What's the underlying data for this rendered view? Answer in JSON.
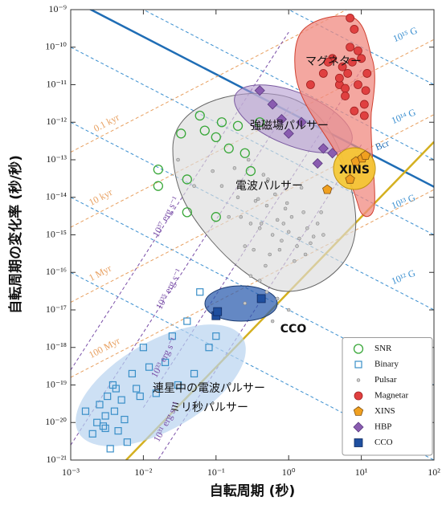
{
  "chart_data": {
    "type": "scatter",
    "xlabel": "自転周期 (秒)",
    "ylabel": "自転周期の変化率 (秒/秒)",
    "xscale": "log",
    "yscale": "log",
    "xlim": [
      0.001,
      100
    ],
    "ylim": [
      1e-21,
      1e-09
    ],
    "xticks": [
      {
        "value": 0.001,
        "label": "10⁻³"
      },
      {
        "value": 0.01,
        "label": "10⁻²"
      },
      {
        "value": 0.1,
        "label": "10⁻¹"
      },
      {
        "value": 1,
        "label": "10⁰"
      },
      {
        "value": 10,
        "label": "10¹"
      },
      {
        "value": 100,
        "label": "10²"
      }
    ],
    "yticks": [
      {
        "value": 1e-21,
        "label": "10⁻²¹"
      },
      {
        "value": 1e-20,
        "label": "10⁻²⁰"
      },
      {
        "value": 1e-19,
        "label": "10⁻¹⁹"
      },
      {
        "value": 1e-18,
        "label": "10⁻¹⁸"
      },
      {
        "value": 1e-17,
        "label": "10⁻¹⁷"
      },
      {
        "value": 1e-16,
        "label": "10⁻¹⁶"
      },
      {
        "value": 1e-15,
        "label": "10⁻¹⁵"
      },
      {
        "value": 1e-14,
        "label": "10⁻¹⁴"
      },
      {
        "value": 1e-13,
        "label": "10⁻¹³"
      },
      {
        "value": 1e-12,
        "label": "10⁻¹²"
      },
      {
        "value": 1e-11,
        "label": "10⁻¹¹"
      },
      {
        "value": 1e-10,
        "label": "10⁻¹⁰"
      },
      {
        "value": 1e-09,
        "label": "10⁻⁹"
      }
    ],
    "legend": "lower right",
    "region_labels": [
      "マグネター",
      "強磁場パルサー",
      "XINS",
      "電波パルサー",
      "CCO",
      "連星中の電波パルサー",
      "ミリ秒パルサー"
    ],
    "reference_lines": [
      {
        "label": "10¹⁵ G",
        "color": "#3a8fd0",
        "dash": true,
        "x": [
          0.001,
          100
        ],
        "values": [
          1e-06,
          1e-11
        ]
      },
      {
        "label": "10¹⁴ G",
        "color": "#3a8fd0",
        "dash": true,
        "x": [
          0.001,
          100
        ],
        "values": [
          1e-08,
          1e-13
        ]
      },
      {
        "label": "10¹³ G",
        "color": "#3a8fd0",
        "dash": true,
        "x": [
          0.001,
          100
        ],
        "values": [
          1e-10,
          1e-15
        ]
      },
      {
        "label": "10¹² G",
        "color": "#3a8fd0",
        "dash": true,
        "x": [
          0.001,
          100
        ],
        "values": [
          1e-12,
          1e-17
        ]
      },
      {
        "color": "#3a8fd0",
        "dash": true,
        "x": [
          0.001,
          100
        ],
        "values": [
          1e-14,
          1e-19
        ]
      },
      {
        "color": "#3a8fd0",
        "dash": true,
        "x": [
          0.001,
          100
        ],
        "values": [
          1e-16,
          1e-21
        ]
      },
      {
        "label": "Bcr",
        "color": "#1f6db5",
        "dash": false,
        "x": [
          0.001,
          100
        ],
        "values": [
          1.9e-09,
          1.9e-14
        ]
      },
      {
        "label": "0.1 kyr",
        "color": "#e8a060",
        "dash": true,
        "x": [
          0.001,
          100
        ],
        "values": [
          1.6e-13,
          1.6e-08
        ]
      },
      {
        "label": "10 kyr",
        "color": "#e8a060",
        "dash": true,
        "x": [
          0.001,
          100
        ],
        "values": [
          1.6e-15,
          1.6e-10
        ]
      },
      {
        "label": "1 Myr",
        "color": "#e8a060",
        "dash": true,
        "x": [
          0.001,
          100
        ],
        "values": [
          1.6e-17,
          1.6e-12
        ]
      },
      {
        "label": "100 Myr",
        "color": "#e8a060",
        "dash": true,
        "x": [
          0.001,
          100
        ],
        "values": [
          1.6e-19,
          1.6e-14
        ]
      },
      {
        "label": "10³⁷ erg s⁻¹",
        "color": "#7a4fa8",
        "dash": true,
        "x": [
          0.001,
          1
        ],
        "values": [
          2.5e-19,
          2.5e-10
        ]
      },
      {
        "label": "10³⁵ erg s⁻¹",
        "color": "#7a4fa8",
        "dash": true,
        "x": [
          0.001,
          1
        ],
        "values": [
          2.5e-21,
          2.5e-12
        ]
      },
      {
        "label": "10³³ erg s⁻¹",
        "color": "#7a4fa8",
        "dash": true,
        "x": [
          0.01,
          10
        ],
        "values": [
          2.5e-20,
          2.5e-11
        ]
      },
      {
        "label": "10³¹ erg s⁻¹",
        "color": "#7a4fa8",
        "dash": true,
        "x": [
          0.01,
          10
        ],
        "values": [
          2.5e-22,
          2.5e-13
        ]
      },
      {
        "color": "#d4b020",
        "dash": false,
        "x": [
          0.0058,
          100
        ],
        "values": [
          1e-21,
          3e-13
        ]
      }
    ],
    "series": [
      {
        "name": "SNR",
        "marker": "circle-open",
        "color": "#3aa83a",
        "x": [
          0.033,
          0.04,
          0.06,
          0.07,
          0.1,
          0.12,
          0.15,
          0.2,
          0.25,
          0.3,
          0.016,
          0.04,
          0.1,
          0.4,
          0.016
        ],
        "values": [
          5e-13,
          3e-14,
          1.5e-12,
          6e-13,
          4e-13,
          1e-12,
          2e-13,
          8e-13,
          1.5e-13,
          5e-14,
          5.5e-14,
          4e-15,
          3e-15,
          1e-12,
          2e-14
        ]
      },
      {
        "name": "Binary",
        "marker": "square-open",
        "color": "#3a8fc8",
        "x": [
          0.0016,
          0.002,
          0.0023,
          0.0025,
          0.0028,
          0.003,
          0.0032,
          0.0035,
          0.0038,
          0.004,
          0.0045,
          0.005,
          0.0055,
          0.006,
          0.007,
          0.008,
          0.009,
          0.01,
          0.012,
          0.015,
          0.02,
          0.025,
          0.03,
          0.04,
          0.05,
          0.06,
          0.08,
          0.1,
          0.003,
          0.0042
        ],
        "values": [
          2e-20,
          5e-21,
          1e-20,
          3e-20,
          8e-21,
          1.5e-20,
          5e-20,
          2e-21,
          1e-19,
          2e-20,
          6e-21,
          4e-20,
          1.2e-20,
          3e-21,
          2e-19,
          8e-20,
          5e-20,
          1e-18,
          3e-19,
          6e-20,
          4e-19,
          2e-18,
          1e-19,
          5e-18,
          2e-19,
          3e-17,
          1e-18,
          2e-18,
          7e-21,
          8e-20
        ]
      },
      {
        "name": "Pulsar",
        "marker": "dot",
        "color": "#999999",
        "x": [
          0.15,
          0.2,
          0.25,
          0.3,
          0.35,
          0.4,
          0.45,
          0.5,
          0.55,
          0.6,
          0.7,
          0.8,
          0.9,
          1.0,
          1.1,
          1.2,
          1.4,
          1.6,
          1.8,
          2.0,
          2.5,
          3.0,
          0.12,
          0.18,
          0.22,
          0.28,
          0.33,
          0.38,
          0.42,
          0.48,
          0.52,
          0.65,
          0.75,
          0.85,
          0.95,
          1.3,
          1.5,
          1.7,
          2.2,
          2.8,
          0.09,
          0.05,
          0.03,
          0.25,
          0.5,
          1.0,
          0.4,
          0.7,
          0.3,
          0.6
        ],
        "values": [
          3e-15,
          1e-14,
          5e-16,
          2e-15,
          8e-15,
          1.5e-15,
          4e-14,
          6e-15,
          3e-16,
          1e-15,
          2.5e-15,
          7e-16,
          5e-15,
          1.2e-15,
          3e-15,
          2e-16,
          8e-16,
          4e-15,
          1.5e-15,
          6e-16,
          2e-15,
          1e-15,
          2e-14,
          6e-14,
          3e-15,
          1e-13,
          4e-16,
          9e-15,
          2e-15,
          1.5e-16,
          3e-14,
          1.2e-14,
          4e-16,
          2e-15,
          7e-15,
          5e-16,
          1.8e-14,
          3e-16,
          9e-16,
          4e-15,
          5e-14,
          2e-14,
          1e-13,
          1.5e-17,
          3e-17,
          1e-17,
          6e-17,
          2e-17,
          8e-17,
          5e-18
        ]
      },
      {
        "name": "Magnetar",
        "marker": "circle",
        "color": "#e04040",
        "x": [
          2,
          3,
          4,
          5,
          5.5,
          6,
          6.5,
          7,
          7.5,
          8,
          9,
          10,
          11,
          12,
          8,
          6,
          11,
          3.5,
          7,
          9,
          11.5,
          5
        ],
        "values": [
          1e-11,
          2e-11,
          5e-11,
          1e-11,
          3e-11,
          8e-12,
          2e-11,
          1e-10,
          4e-11,
          2e-12,
          1e-11,
          5e-11,
          3e-12,
          2e-11,
          3e-10,
          5e-12,
          1.5e-12,
          4e-11,
          6e-10,
          8e-11,
          7e-12,
          1.5e-11
        ]
      },
      {
        "name": "XINS",
        "marker": "pentagon",
        "color": "#f0a020",
        "x": [
          3.4,
          7,
          8.4,
          10.3,
          11.4
        ],
        "values": [
          1.6e-14,
          3e-14,
          9e-14,
          1.1e-13,
          1.3e-13
        ]
      },
      {
        "name": "HBP",
        "marker": "diamond",
        "color": "#8a5cb0",
        "x": [
          0.4,
          0.6,
          1.0,
          1.5,
          2.5,
          3,
          4,
          0.8
        ],
        "values": [
          7e-12,
          3e-12,
          5e-13,
          1e-12,
          8e-14,
          2e-13,
          1.5e-13,
          1.2e-12
        ]
      },
      {
        "name": "CCO",
        "marker": "square",
        "color": "#1f4f9f",
        "x": [
          0.1,
          0.105,
          0.42
        ],
        "values": [
          7e-18,
          9e-18,
          2e-17
        ]
      }
    ]
  }
}
